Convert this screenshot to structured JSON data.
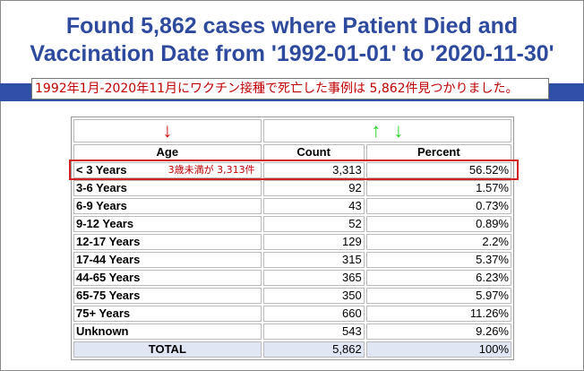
{
  "title_line1": "Found 5,862 cases where Patient Died and",
  "title_line2": "Vaccination Date from '1992-01-01' to '2020-11-30'",
  "jp_note": "1992年1月-2020年11月にワクチン接種で死亡した事例は 5,862件見つかりました。",
  "highlight_note": "3歳未満が 3,313件",
  "icons": {
    "sort_down": "arrow-down-red",
    "sort_up": "arrow-up-green",
    "sort_down_green": "arrow-down-green"
  },
  "colors": {
    "title": "#2e4a9e",
    "band": "#3050a8",
    "note": "#c00000",
    "total_bg": "#e0e6f4"
  },
  "table": {
    "headers": {
      "age": "Age",
      "count": "Count",
      "percent": "Percent"
    },
    "rows": [
      {
        "age": "< 3 Years",
        "count": "3,313",
        "percent": "56.52%"
      },
      {
        "age": "3-6 Years",
        "count": "92",
        "percent": "1.57%"
      },
      {
        "age": "6-9 Years",
        "count": "43",
        "percent": "0.73%"
      },
      {
        "age": "9-12 Years",
        "count": "52",
        "percent": "0.89%"
      },
      {
        "age": "12-17 Years",
        "count": "129",
        "percent": "2.2%"
      },
      {
        "age": "17-44 Years",
        "count": "315",
        "percent": "5.37%"
      },
      {
        "age": "44-65 Years",
        "count": "365",
        "percent": "6.23%"
      },
      {
        "age": "65-75 Years",
        "count": "350",
        "percent": "5.97%"
      },
      {
        "age": "75+ Years",
        "count": "660",
        "percent": "11.26%"
      },
      {
        "age": "Unknown",
        "count": "543",
        "percent": "9.26%"
      }
    ],
    "total": {
      "age": "TOTAL",
      "count": "5,862",
      "percent": "100%"
    }
  }
}
